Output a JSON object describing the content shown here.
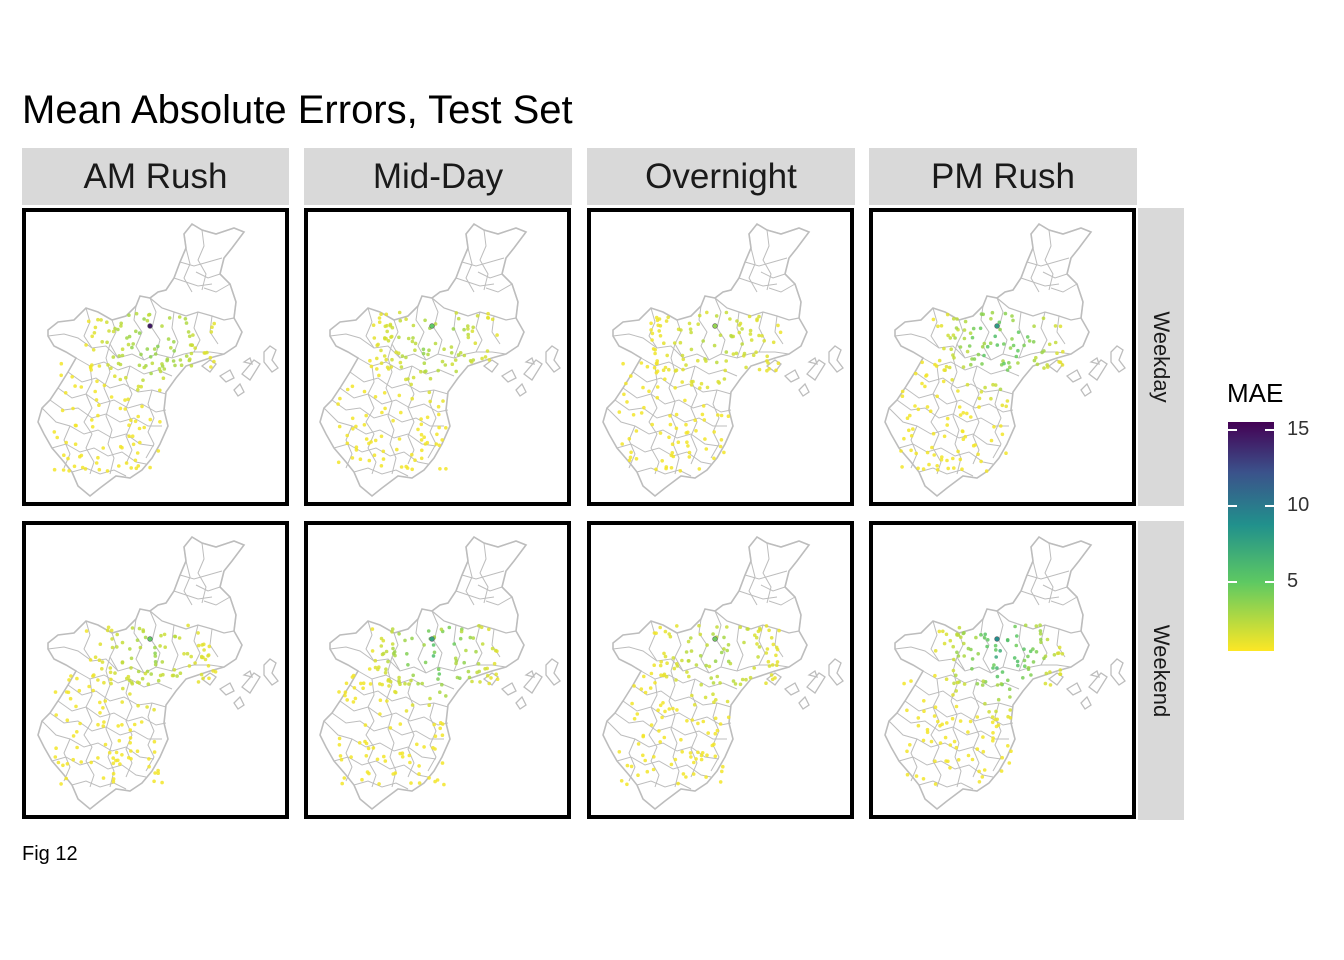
{
  "title": "Mean Absolute Errors, Test Set",
  "caption": "Fig 12",
  "columns": [
    "AM Rush",
    "Mid-Day",
    "Overnight",
    "PM Rush"
  ],
  "rows": [
    "Weekday",
    "Weekend"
  ],
  "legend": {
    "title": "MAE",
    "ticks": [
      {
        "label": "15",
        "value": 15
      },
      {
        "label": "10",
        "value": 10
      },
      {
        "label": "5",
        "value": 5
      }
    ],
    "min": 0.5,
    "max": 15.5,
    "colors": [
      "#fde725",
      "#5ec962",
      "#21918c",
      "#3b528b",
      "#440154"
    ]
  },
  "map_colors": {
    "outline": "#bdbdbd",
    "panel_border": "#000000",
    "strip": "#d9d9d9"
  },
  "panels": [
    {
      "column": "AM Rush",
      "row": "Weekday",
      "center_mae": 4.0,
      "peak_mae": 14.5
    },
    {
      "column": "Mid-Day",
      "row": "Weekday",
      "center_mae": 3.5,
      "peak_mae": 5.0
    },
    {
      "column": "Overnight",
      "row": "Weekday",
      "center_mae": 2.5,
      "peak_mae": 3.5
    },
    {
      "column": "PM Rush",
      "row": "Weekday",
      "center_mae": 5.5,
      "peak_mae": 8.0
    },
    {
      "column": "AM Rush",
      "row": "Weekend",
      "center_mae": 3.0,
      "peak_mae": 5.0
    },
    {
      "column": "Mid-Day",
      "row": "Weekend",
      "center_mae": 5.0,
      "peak_mae": 7.5
    },
    {
      "column": "Overnight",
      "row": "Weekend",
      "center_mae": 3.0,
      "peak_mae": 4.5
    },
    {
      "column": "PM Rush",
      "row": "Weekend",
      "center_mae": 6.0,
      "peak_mae": 9.0
    }
  ]
}
